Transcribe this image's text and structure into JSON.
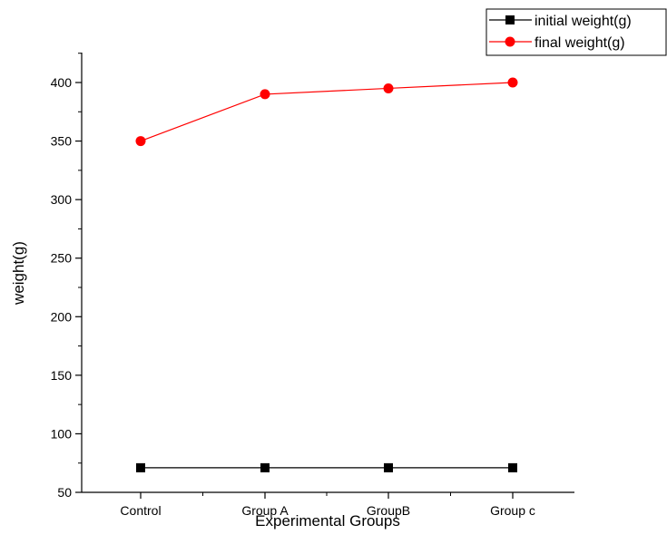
{
  "chart_data": {
    "type": "line",
    "title": "",
    "xlabel": "Experimental Groups",
    "ylabel": "weight(g)",
    "categories": [
      "Control",
      "Group A",
      "GroupB",
      "Group c"
    ],
    "ylim": [
      50,
      420
    ],
    "yticks": [
      50,
      100,
      150,
      200,
      250,
      300,
      350,
      400
    ],
    "grid": false,
    "legend_position": "top-right",
    "series": [
      {
        "name": "initial weight(g)",
        "values": [
          71,
          71,
          71,
          71
        ],
        "color": "#000000",
        "marker": "square"
      },
      {
        "name": "final weight(g)",
        "values": [
          350,
          390,
          395,
          400
        ],
        "color": "#ff0000",
        "marker": "circle"
      }
    ]
  }
}
